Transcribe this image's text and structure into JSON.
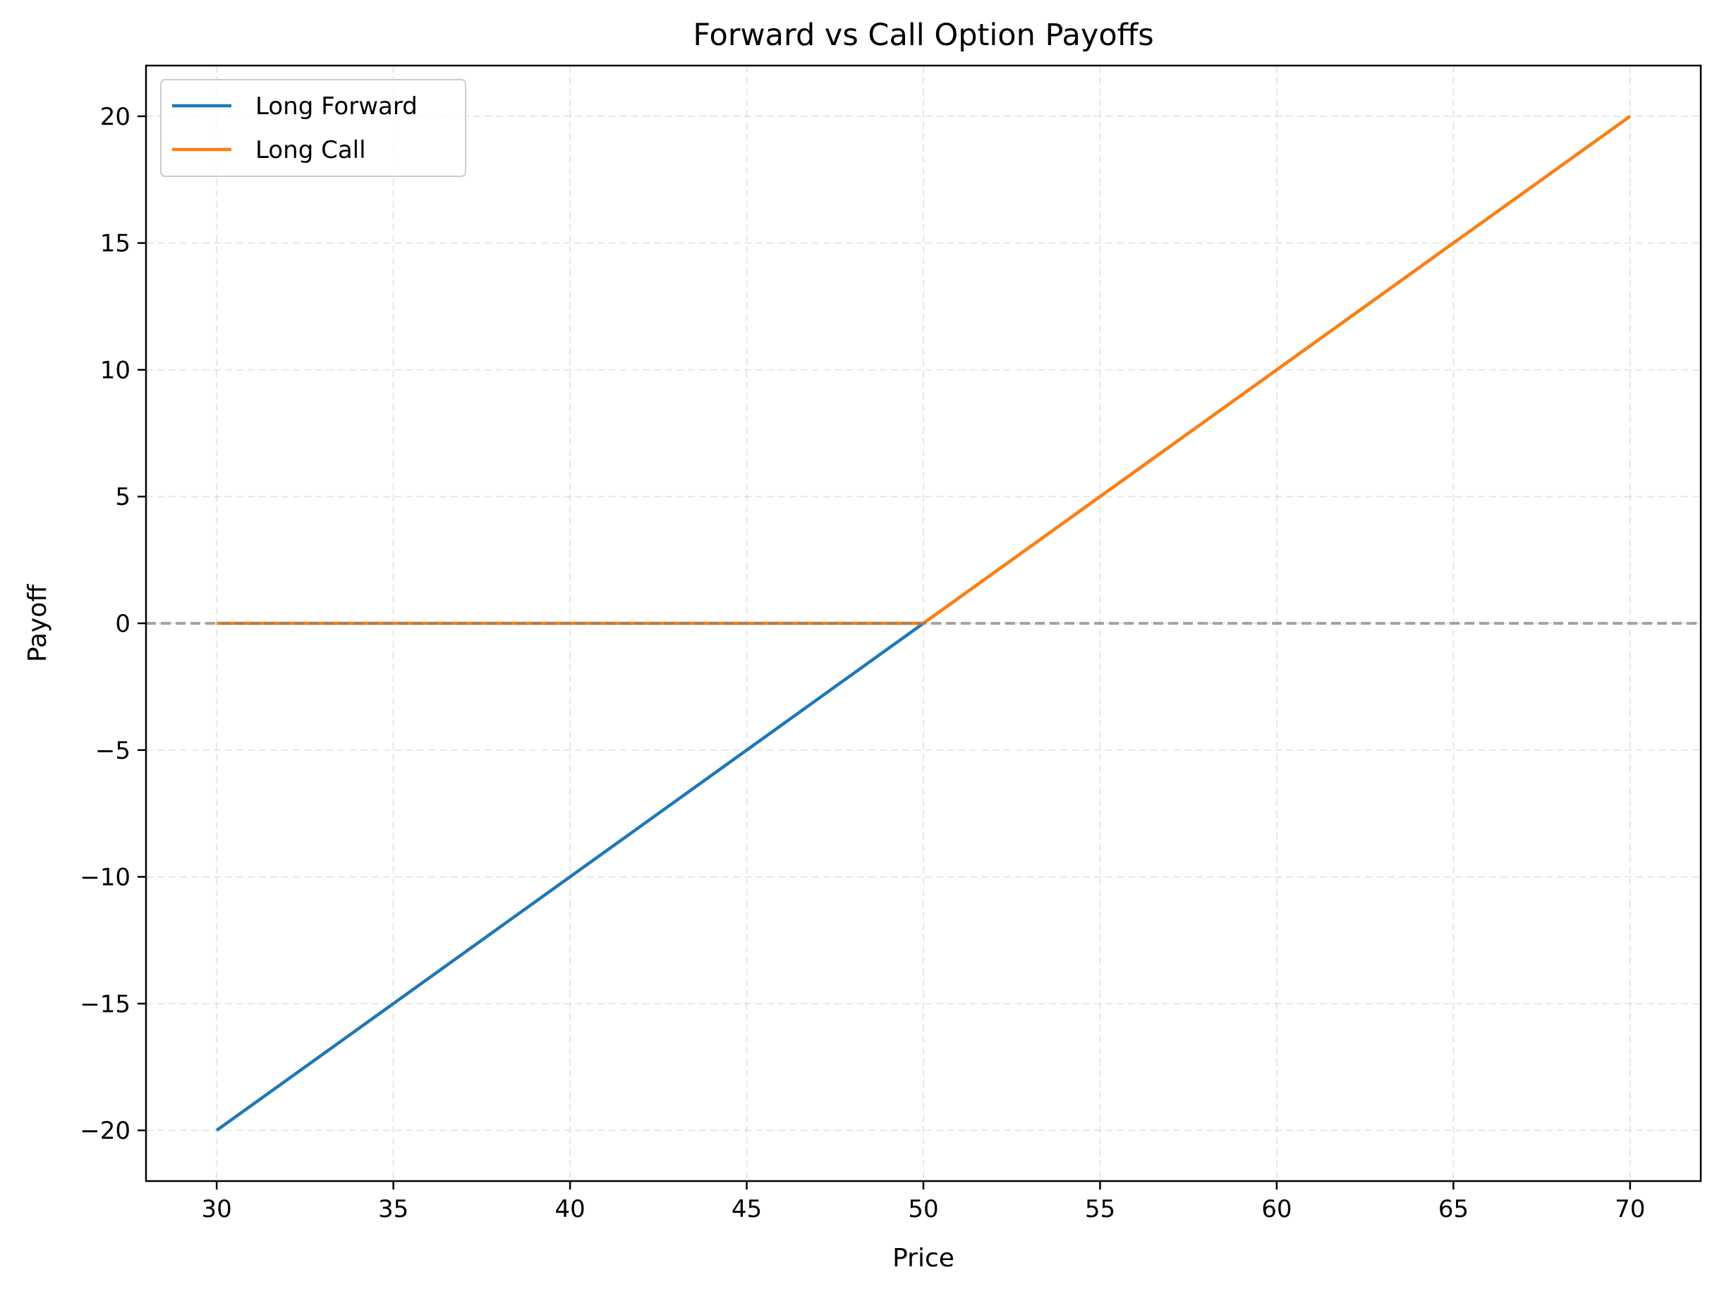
{
  "chart_data": {
    "type": "line",
    "title": "Forward vs Call Option Payoffs",
    "xlabel": "Price",
    "ylabel": "Payoff",
    "xlim": [
      28,
      72
    ],
    "ylim": [
      -22,
      22
    ],
    "xticks": [
      30,
      35,
      40,
      45,
      50,
      55,
      60,
      65,
      70
    ],
    "yticks": [
      -20,
      -15,
      -10,
      -5,
      0,
      5,
      10,
      15,
      20
    ],
    "ytick_labels": [
      "−20",
      "−15",
      "−10",
      "−5",
      "0",
      "5",
      "10",
      "15",
      "20"
    ],
    "grid": true,
    "grid_style": "dashed",
    "legend_position": "upper-left",
    "reference_line": {
      "type": "horizontal",
      "y": 0,
      "style": "dashed",
      "color": "#999999"
    },
    "series": [
      {
        "name": "Long Forward",
        "color": "#1f77b4",
        "x": [
          30,
          50,
          70
        ],
        "y": [
          -20,
          0,
          20
        ]
      },
      {
        "name": "Long Call",
        "color": "#ff7f0e",
        "x": [
          30,
          50,
          70
        ],
        "y": [
          0,
          0,
          20
        ]
      }
    ]
  }
}
